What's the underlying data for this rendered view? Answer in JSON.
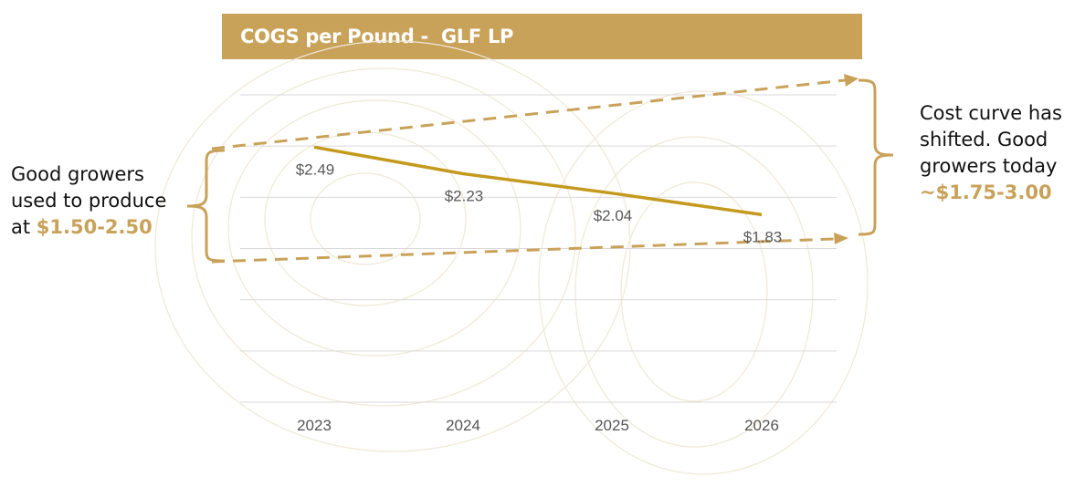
{
  "chart_data": {
    "type": "line",
    "title": "COGS per Pound -  GLF LP",
    "categories": [
      "2023",
      "2024",
      "2025",
      "2026"
    ],
    "series": [
      {
        "name": "COGS per Pound",
        "values": [
          2.49,
          2.23,
          2.04,
          1.83
        ],
        "labels": [
          "$2.49",
          "$2.23",
          "$2.04",
          "$1.83"
        ]
      }
    ],
    "ylim": [
      0.0,
      3.0
    ],
    "grid": true,
    "colors": {
      "line": "#c49a1e",
      "accent": "#c9a25a",
      "grid": "#d9d9d9",
      "text": "#595959"
    }
  },
  "annotations": {
    "left": {
      "line1": "Good growers",
      "line2": "used to produce",
      "prefix": "at ",
      "range": "$1.50-2.50"
    },
    "right": {
      "line1": "Cost curve has",
      "line2": "shifted. Good",
      "line3": "growers today",
      "range": "~$1.75-3.00"
    }
  }
}
